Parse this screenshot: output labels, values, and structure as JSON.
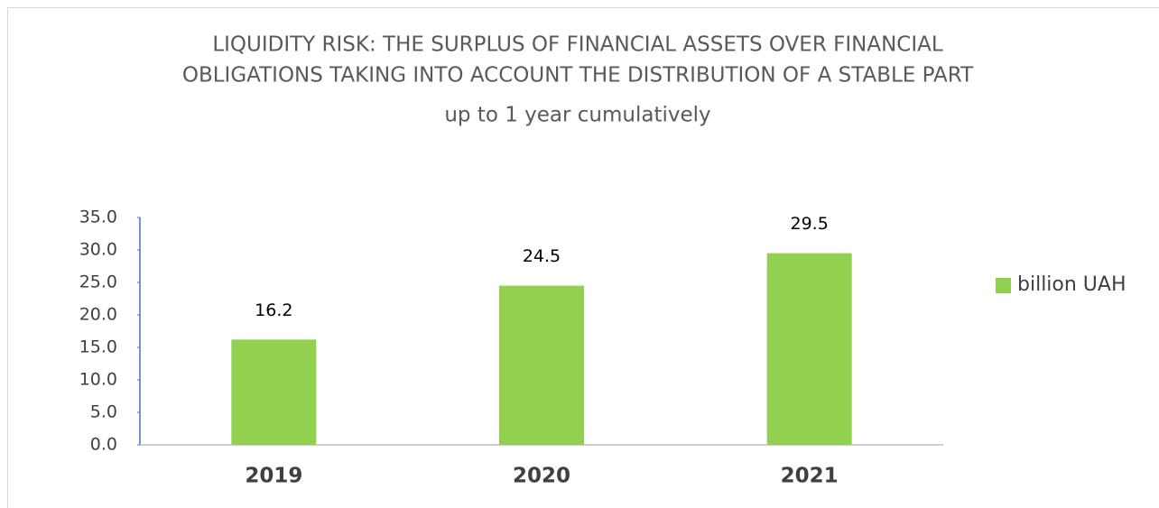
{
  "chart_data": {
    "type": "bar",
    "title": [
      "LIQUIDITY RISK: THE SURPLUS OF FINANCIAL ASSETS OVER FINANCIAL",
      "OBLIGATIONS TAKING INTO ACCOUNT THE DISTRIBUTION OF A STABLE PART",
      "up to 1 year cumulatively"
    ],
    "categories": [
      "2019",
      "2020",
      "2021"
    ],
    "series": [
      {
        "name": "billion UAH",
        "color": "#92d050",
        "values": [
          16.2,
          24.5,
          29.5
        ]
      }
    ],
    "ylim": [
      0,
      35
    ],
    "yticks": [
      {
        "value": 0,
        "label": "0.0"
      },
      {
        "value": 5,
        "label": "5.0"
      },
      {
        "value": 10,
        "label": "10.0"
      },
      {
        "value": 15,
        "label": "15.0"
      },
      {
        "value": 20,
        "label": "20.0"
      },
      {
        "value": 25,
        "label": "25.0"
      },
      {
        "value": 30,
        "label": "30.0"
      },
      {
        "value": 35,
        "label": "35.0"
      }
    ],
    "legend": "right",
    "grid": false
  }
}
